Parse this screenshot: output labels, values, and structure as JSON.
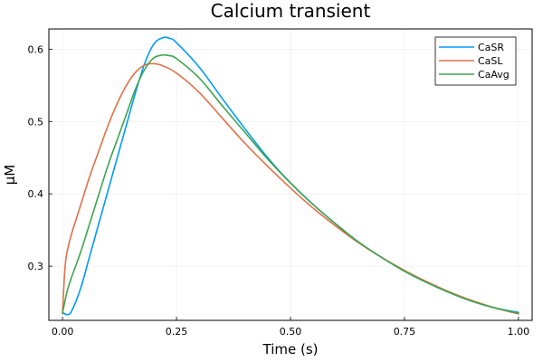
{
  "chart_data": {
    "type": "line",
    "title": "Calcium transient",
    "xlabel": "Time (s)",
    "ylabel": "μM",
    "xlim": [
      -0.03,
      1.03
    ],
    "ylim": [
      0.225,
      0.628
    ],
    "xticks": [
      0.0,
      0.25,
      0.5,
      0.75,
      1.0
    ],
    "xtick_labels": [
      "0.00",
      "0.25",
      "0.50",
      "0.75",
      "1.00"
    ],
    "yticks": [
      0.3,
      0.4,
      0.5,
      0.6
    ],
    "ytick_labels": [
      "0.3",
      "0.4",
      "0.5",
      "0.6"
    ],
    "grid": true,
    "legend_position": "top-right",
    "series": [
      {
        "name": "CaSR",
        "color": "#009AFA",
        "x": [
          0.0,
          0.01,
          0.02,
          0.04,
          0.06,
          0.08,
          0.1,
          0.12,
          0.14,
          0.16,
          0.18,
          0.2,
          0.22,
          0.235,
          0.25,
          0.3,
          0.35,
          0.4,
          0.45,
          0.5,
          0.55,
          0.6,
          0.65,
          0.7,
          0.75,
          0.8,
          0.85,
          0.9,
          0.95,
          1.0
        ],
        "y": [
          0.236,
          0.233,
          0.238,
          0.27,
          0.315,
          0.36,
          0.405,
          0.45,
          0.495,
          0.54,
          0.58,
          0.607,
          0.616,
          0.615,
          0.609,
          0.575,
          0.532,
          0.49,
          0.45,
          0.415,
          0.385,
          0.358,
          0.333,
          0.312,
          0.293,
          0.277,
          0.263,
          0.251,
          0.242,
          0.236
        ]
      },
      {
        "name": "CaSL",
        "color": "#E26F46",
        "x": [
          0.0,
          0.005,
          0.01,
          0.02,
          0.04,
          0.06,
          0.08,
          0.1,
          0.12,
          0.14,
          0.16,
          0.18,
          0.2,
          0.22,
          0.25,
          0.3,
          0.35,
          0.4,
          0.45,
          0.5,
          0.55,
          0.6,
          0.65,
          0.7,
          0.75,
          0.8,
          0.85,
          0.9,
          0.95,
          1.0
        ],
        "y": [
          0.234,
          0.295,
          0.32,
          0.345,
          0.385,
          0.425,
          0.46,
          0.495,
          0.525,
          0.55,
          0.568,
          0.578,
          0.58,
          0.577,
          0.567,
          0.54,
          0.505,
          0.47,
          0.438,
          0.408,
          0.38,
          0.355,
          0.332,
          0.312,
          0.294,
          0.278,
          0.264,
          0.252,
          0.242,
          0.234
        ]
      },
      {
        "name": "CaAvg",
        "color": "#3EA44E",
        "x": [
          0.0,
          0.01,
          0.02,
          0.04,
          0.06,
          0.08,
          0.1,
          0.12,
          0.14,
          0.16,
          0.18,
          0.2,
          0.22,
          0.235,
          0.25,
          0.3,
          0.35,
          0.4,
          0.45,
          0.5,
          0.55,
          0.6,
          0.65,
          0.7,
          0.75,
          0.8,
          0.85,
          0.9,
          0.95,
          1.0
        ],
        "y": [
          0.235,
          0.265,
          0.285,
          0.32,
          0.36,
          0.4,
          0.44,
          0.475,
          0.51,
          0.545,
          0.572,
          0.588,
          0.592,
          0.591,
          0.587,
          0.56,
          0.522,
          0.485,
          0.448,
          0.415,
          0.385,
          0.358,
          0.333,
          0.312,
          0.293,
          0.277,
          0.263,
          0.251,
          0.242,
          0.235
        ]
      }
    ]
  }
}
